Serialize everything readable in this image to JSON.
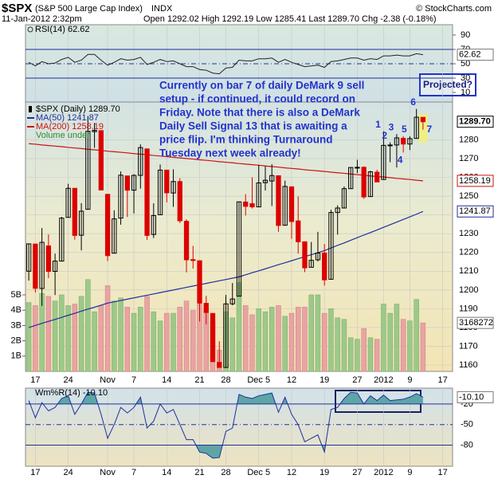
{
  "header": {
    "symbol": "$SPX",
    "name": "(S&P 500 Large Cap Index)",
    "exchange": "INDX",
    "copyright": "© StockCharts.com",
    "date": "11-Jan-2012 2:32pm",
    "quote": "Open 1292.02 High 1292.19 Low 1285.41 Last 1289.70 Chg -2.38 (-0.18%)"
  },
  "chart_data": {
    "type": "candlestick",
    "name": "$SPX (Daily) 1289.70",
    "value_label": "1289.70",
    "categories": [
      "2011-10-14",
      "2011-10-17",
      "2011-10-18",
      "2011-10-19",
      "2011-10-20",
      "2011-10-21",
      "2011-10-24",
      "2011-10-25",
      "2011-10-26",
      "2011-10-27",
      "2011-10-28",
      "2011-10-31",
      "2011-11-01",
      "2011-11-02",
      "2011-11-03",
      "2011-11-04",
      "2011-11-07",
      "2011-11-08",
      "2011-11-09",
      "2011-11-10",
      "2011-11-11",
      "2011-11-14",
      "2011-11-15",
      "2011-11-16",
      "2011-11-17",
      "2011-11-18",
      "2011-11-21",
      "2011-11-22",
      "2011-11-23",
      "2011-11-25",
      "2011-11-28",
      "2011-11-29",
      "2011-11-30",
      "2011-12-01",
      "2011-12-02",
      "2011-12-05",
      "2011-12-06",
      "2011-12-07",
      "2011-12-08",
      "2011-12-09",
      "2011-12-12",
      "2011-12-13",
      "2011-12-14",
      "2011-12-15",
      "2011-12-16",
      "2011-12-19",
      "2011-12-20",
      "2011-12-21",
      "2011-12-22",
      "2011-12-23",
      "2011-12-27",
      "2011-12-28",
      "2011-12-29",
      "2011-12-30",
      "2012-01-03",
      "2012-01-04",
      "2012-01-05",
      "2012-01-06",
      "2012-01-09",
      "2012-01-10",
      "2012-01-11",
      "2012-01-12",
      "2012-01-13",
      "2012-01-17",
      "2012-01-18"
    ],
    "xticks": [
      {
        "value": "2011-10-17",
        "label": "17"
      },
      {
        "value": "2011-10-24",
        "label": "24"
      },
      {
        "value": "2011-11-01",
        "label": "Nov"
      },
      {
        "value": "2011-11-07",
        "label": "7"
      },
      {
        "value": "2011-11-14",
        "label": "14"
      },
      {
        "value": "2011-11-21",
        "label": "21"
      },
      {
        "value": "2011-11-28",
        "label": "28"
      },
      {
        "value": "2011-12-05",
        "label": "Dec 5"
      },
      {
        "value": "2011-12-12",
        "label": "12"
      },
      {
        "value": "2011-12-19",
        "label": "19"
      },
      {
        "value": "2011-12-27",
        "label": "27"
      },
      {
        "value": "2012-01-03",
        "label": "2012"
      },
      {
        "value": "2012-01-09",
        "label": "9"
      },
      {
        "value": "2012-01-17",
        "label": "17"
      }
    ],
    "open": [
      1210,
      1224.5,
      1200.8,
      1223.5,
      1209.9,
      1215.4,
      1238.7,
      1254.2,
      1229.2,
      1243,
      1284.4,
      1284.96,
      1251,
      1219.6,
      1238.3,
      1260.8,
      1253.2,
      1261.1,
      1275.2,
      1229.6,
      1240.1,
      1263.9,
      1251.7,
      1257.8,
      1236.6,
      1216.2,
      1215.6,
      1192.9,
      1187.5,
      1161.4,
      1158.7,
      1192.6,
      1196.7,
      1246.9,
      1246,
      1244.3,
      1257.2,
      1258.1,
      1260.9,
      1234.5,
      1255,
      1236.8,
      1225.7,
      1212.1,
      1216.1,
      1219.7,
      1205.7,
      1241.3,
      1243.7,
      1254,
      1265,
      1265.4,
      1249.8,
      1262.8,
      1258.9,
      1277,
      1277.3,
      1280.9,
      1277.8,
      1280.8,
      1292.02,
      null,
      null,
      null,
      null
    ],
    "high": [
      1224.6,
      1224.6,
      1233,
      1229.6,
      1219.4,
      1239,
      1256.6,
      1254.2,
      1246.3,
      1292.7,
      1289,
      1284.96,
      1251,
      1242.5,
      1263.2,
      1260.8,
      1261.7,
      1277.6,
      1275.2,
      1246.2,
      1266.9,
      1263.9,
      1264.3,
      1259.6,
      1237.7,
      1223.5,
      1215.6,
      1196.8,
      1187.5,
      1172.7,
      1197.4,
      1203.7,
      1247.1,
      1251.1,
      1260.1,
      1266.7,
      1266,
      1267.1,
      1260.9,
      1258.3,
      1255,
      1249.9,
      1225.7,
      1225.6,
      1231,
      1224.6,
      1242.8,
      1245.1,
      1255.2,
      1265.4,
      1269.4,
      1265.9,
      1263.5,
      1264.1,
      1284.6,
      1278.7,
      1283.1,
      1282,
      1281.99,
      1296.5,
      1292.19,
      null,
      null,
      null,
      null
    ],
    "low": [
      1205,
      1198.6,
      1191.5,
      1206.3,
      1197.3,
      1215.4,
      1238.7,
      1226.8,
      1221.1,
      1243,
      1275.8,
      1253.2,
      1215.4,
      1219.6,
      1234.8,
      1238.9,
      1240.8,
      1254,
      1226.6,
      1227.7,
      1240.1,
      1246.7,
      1244.3,
      1235.7,
      1209.4,
      1211.4,
      1183.2,
      1181.7,
      1161.8,
      1158.7,
      1158.7,
      1191.8,
      1196.7,
      1239.7,
      1243.4,
      1244.3,
      1253,
      1244.8,
      1231,
      1234.5,
      1227.3,
      1219.4,
      1209.5,
      1212.1,
      1215.2,
      1202.4,
      1205.7,
      1229.5,
      1243.7,
      1254,
      1262.3,
      1248.6,
      1249.8,
      1257.5,
      1258.9,
      1268.1,
      1265.3,
      1273.3,
      1274.6,
      1280.8,
      1285.41,
      null,
      null,
      null,
      null
    ],
    "close": [
      1224.6,
      1200.9,
      1225.4,
      1209.9,
      1215.4,
      1238.3,
      1254.2,
      1229.1,
      1242,
      1284.6,
      1285.1,
      1253.3,
      1218.3,
      1237.9,
      1261.2,
      1253.2,
      1261.1,
      1275.9,
      1229.1,
      1239.7,
      1263.9,
      1251.8,
      1257.8,
      1236.9,
      1216.1,
      1215.7,
      1193,
      1188,
      1161.8,
      1158.7,
      1192.6,
      1195.2,
      1247,
      1244.6,
      1244.3,
      1257.1,
      1258.5,
      1261,
      1234.4,
      1255.2,
      1236.5,
      1225.7,
      1211.8,
      1215.8,
      1219.7,
      1205.4,
      1241.3,
      1243.7,
      1254,
      1265.3,
      1265.4,
      1249.6,
      1263,
      1257.6,
      1277.1,
      1277.3,
      1281.1,
      1277.8,
      1280.7,
      1292.1,
      1289.7,
      null,
      null,
      null,
      null
    ],
    "ylim": [
      1156.6,
      1300.2
    ],
    "yticks": [
      1160,
      1170,
      1180,
      1190,
      1200,
      1210,
      1220,
      1230,
      1240,
      1250,
      1260,
      1270,
      1280
    ],
    "grid": true,
    "up_color": "#000000",
    "down_color": "#dd0000",
    "series": [
      {
        "name": "MA(50) 1241.87",
        "value_label": "1241.87",
        "color": "#1f2f9e",
        "values": [
          1180,
          1181.1,
          1182.2,
          1183.3,
          1184.3,
          1185.4,
          1186.5,
          1187.6,
          1188.7,
          1189.8,
          1190.8,
          1191.9,
          1193,
          1193.7,
          1194.4,
          1195.1,
          1195.8,
          1196.5,
          1197.2,
          1197.9,
          1198.6,
          1199.3,
          1200,
          1200.7,
          1201.4,
          1202.1,
          1202.8,
          1203.5,
          1204.2,
          1204.9,
          1205.6,
          1206.3,
          1207,
          1208.1,
          1209.2,
          1210.2,
          1211.3,
          1212.4,
          1213.5,
          1214.5,
          1215.6,
          1216.7,
          1217.8,
          1218.8,
          1219.9,
          1221,
          1222.4,
          1223.8,
          1225.1,
          1226.5,
          1227.9,
          1229.3,
          1230.6,
          1232,
          1233.4,
          1234.8,
          1236.2,
          1237.6,
          1239,
          1240.4,
          1241.87,
          null,
          null,
          null,
          null
        ]
      },
      {
        "name": "MA(200) 1258.19",
        "value_label": "1258.19",
        "color": "#cc1111",
        "values": [
          1278,
          1277.7,
          1277.3,
          1277,
          1276.7,
          1276.4,
          1276,
          1275.7,
          1275.4,
          1275,
          1274.7,
          1274.4,
          1274,
          1273.7,
          1273.4,
          1273.1,
          1272.7,
          1272.4,
          1272.1,
          1271.7,
          1271.4,
          1271.1,
          1270.7,
          1270.4,
          1270.1,
          1269.8,
          1269.4,
          1269.1,
          1268.8,
          1268.4,
          1268.1,
          1267.8,
          1267.4,
          1267.1,
          1266.8,
          1266.5,
          1266.1,
          1265.8,
          1265.5,
          1265.1,
          1264.8,
          1264.5,
          1264.1,
          1263.8,
          1263.5,
          1263.2,
          1262.8,
          1262.5,
          1262.2,
          1261.8,
          1261.5,
          1261.2,
          1260.8,
          1260.5,
          1260.2,
          1259.9,
          1259.5,
          1259.2,
          1258.9,
          1258.5,
          1258.19,
          null,
          null,
          null,
          null
        ]
      }
    ],
    "volume": {
      "name": "Volume undef",
      "color": "#2e8b2e",
      "up_color": "#9cc98a",
      "down_color": "#e9a3a3",
      "value_label": "3168272",
      "ylim": [
        0,
        17.6
      ],
      "yticks": [
        {
          "value": 1,
          "label": "1B"
        },
        {
          "value": 2,
          "label": "2B"
        },
        {
          "value": 3,
          "label": "3B"
        },
        {
          "value": 4,
          "label": "4B"
        },
        {
          "value": 5,
          "label": "5B"
        }
      ],
      "values": [
        4.5,
        4.3,
        5.1,
        4.9,
        4.6,
        5.0,
        4.3,
        4.4,
        4.9,
        6.0,
        3.9,
        4.3,
        5.6,
        4.6,
        4.8,
        4.2,
        3.8,
        4.2,
        4.9,
        3.9,
        3.3,
        3.8,
        3.8,
        4.2,
        4.6,
        4.0,
        4.4,
        4.1,
        3.3,
        1.4,
        3.9,
        3.5,
        5.8,
        4.3,
        3.7,
        4.1,
        3.9,
        4.2,
        4.3,
        3.6,
        3.8,
        4.2,
        4.2,
        5.0,
        5.0,
        3.8,
        4.1,
        3.5,
        3.4,
        2.2,
        2.1,
        2.8,
        2.2,
        2.1,
        4.4,
        3.8,
        4.4,
        3.4,
        3.3,
        4.7,
        3.168272,
        null,
        null,
        null,
        null
      ]
    },
    "rsi": {
      "name": "RSI(14) 62.62",
      "value_label": "62.62",
      "color": "#222222",
      "level_color": "#1f2f9e",
      "ylim": [
        -3.3,
        104.4
      ],
      "yticks": [
        90,
        70,
        50,
        30,
        10
      ],
      "levels": [
        70,
        30
      ],
      "midline": 50,
      "values": [
        52,
        47,
        53,
        50,
        51,
        56,
        59,
        52,
        55,
        63,
        63,
        55,
        48,
        52,
        57,
        55,
        56,
        59,
        49,
        52,
        56,
        53,
        54,
        50,
        46,
        46,
        42,
        41,
        37,
        36,
        44,
        45,
        55,
        54,
        54,
        57,
        57,
        58,
        52,
        56,
        52,
        49,
        46,
        47,
        48,
        45,
        53,
        54,
        56,
        58,
        58,
        55,
        57,
        56,
        61,
        61,
        62,
        61,
        61,
        64,
        62.62,
        null,
        null,
        null,
        null
      ]
    },
    "willr": {
      "name": "Wm%R(14) -10.10",
      "value_label": "-10.10",
      "color": "#1f2f9e",
      "fill": "#5ea6a6",
      "ylim": [
        -110.7,
        3.1
      ],
      "yticks": [
        -20,
        -50,
        -80
      ],
      "levels": [
        -20,
        -80
      ],
      "midline": -50,
      "values": [
        -15,
        -40,
        -18,
        -30,
        -25,
        -12,
        -8,
        -35,
        -20,
        -3,
        -4,
        -35,
        -70,
        -50,
        -25,
        -33,
        -25,
        -10,
        -55,
        -45,
        -20,
        -33,
        -28,
        -50,
        -72,
        -72,
        -90,
        -92,
        -99,
        -98,
        -60,
        -55,
        -6,
        -10,
        -12,
        -8,
        -6,
        -4,
        -32,
        -10,
        -35,
        -50,
        -75,
        -70,
        -65,
        -90,
        -28,
        -25,
        -12,
        -3,
        -4,
        -20,
        -8,
        -15,
        -7,
        -15,
        -14,
        -13,
        -10,
        -5,
        -10.1,
        null,
        null,
        null,
        null
      ]
    },
    "annotations": {
      "note": [
        "Currently on bar 7 of daily DeMark 9 sell",
        "setup - if continued, it could record on",
        "Friday. Note that there is also a DeMark",
        "Daily Sell Signal 13 that is awaiting a",
        "price flip.  I'm thinking Turnaround",
        "Tuesday next week already!"
      ],
      "projected": "Projected?",
      "demark": {
        "labels": [
          "1",
          "2",
          "3",
          "4",
          "5",
          "6",
          "7"
        ],
        "dates": [
          "2012-01-03",
          "2012-01-04",
          "2012-01-05",
          "2012-01-06",
          "2012-01-09",
          "2012-01-10",
          "2012-01-11"
        ]
      }
    }
  }
}
